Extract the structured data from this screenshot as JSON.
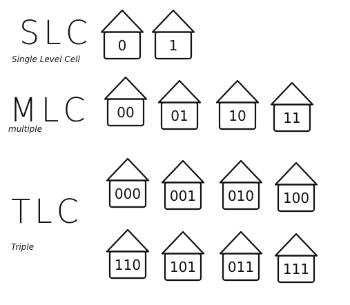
{
  "rows": [
    {
      "title": "SLC",
      "subtitle": "Single Level Cell",
      "houses": [
        "0",
        "1"
      ]
    },
    {
      "title": "MLC",
      "subtitle": "multiple",
      "houses": [
        "00",
        "01",
        "10",
        "11"
      ]
    },
    {
      "title": "TLC",
      "subtitle": "Triple",
      "houses": [
        "000",
        "001",
        "010",
        "100",
        "110",
        "101",
        "011",
        "111"
      ]
    }
  ],
  "stroke_color": "#111111",
  "background": "#ffffff"
}
